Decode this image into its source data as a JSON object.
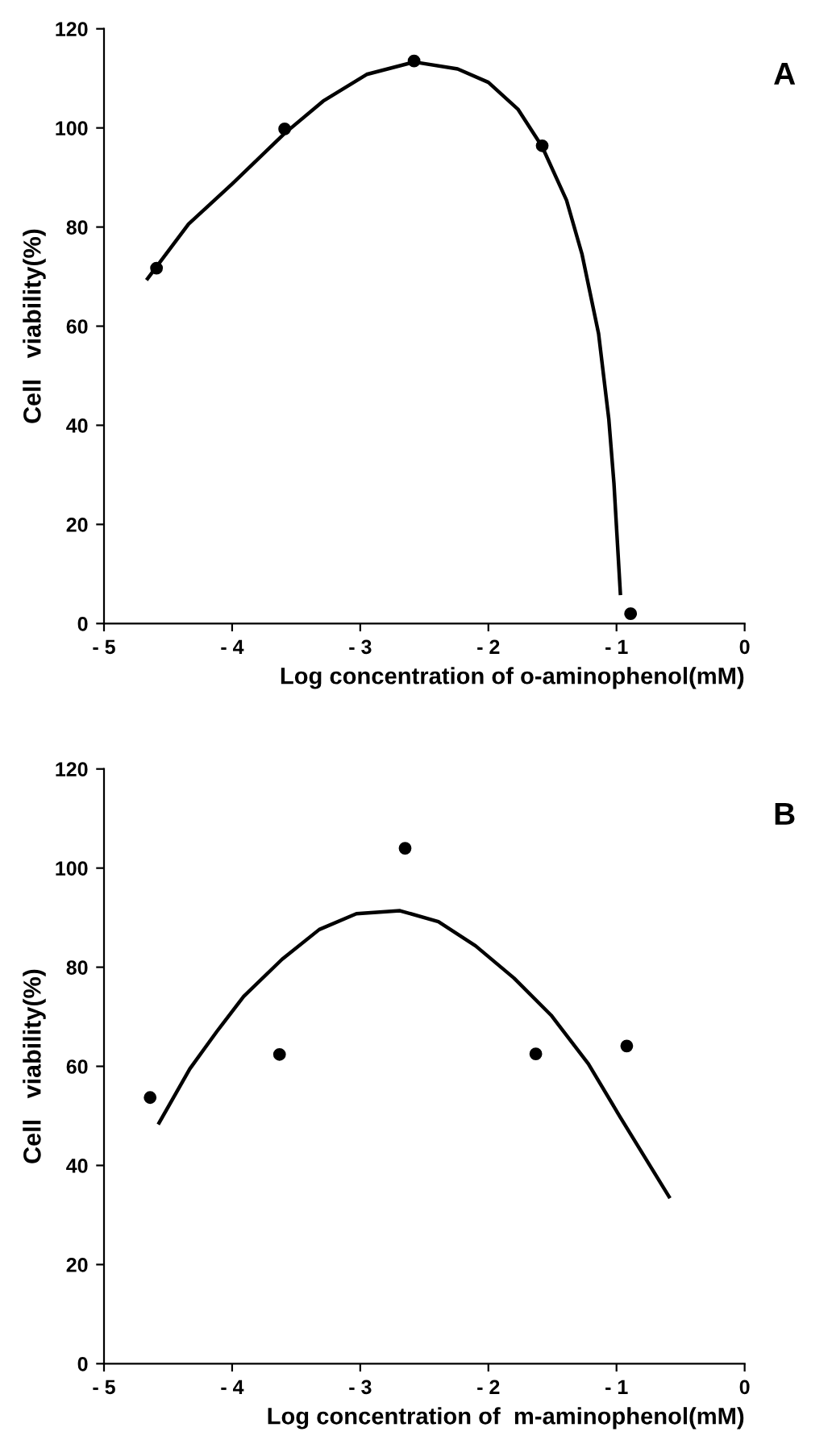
{
  "chart_data": [
    {
      "type": "scatter",
      "annotations": [
        "A"
      ],
      "xlabel": "Log concentration of o-aminophenol(mM)",
      "ylabel": "Cell   viability(%)",
      "xlim": [
        -5,
        0
      ],
      "ylim": [
        0,
        120
      ],
      "xticks": [
        {
          "value": -5,
          "label": "- 5"
        },
        {
          "value": -4,
          "label": "- 4"
        },
        {
          "value": -3,
          "label": "- 3"
        },
        {
          "value": -2,
          "label": "- 2"
        },
        {
          "value": -1,
          "label": "- 1"
        },
        0
      ],
      "yticks": [
        0,
        20,
        40,
        60,
        80,
        100,
        120
      ],
      "grid": false,
      "legend": false,
      "series": [
        {
          "color": "#000000",
          "marker": "circle",
          "x": [
            -4.59,
            -3.59,
            -2.58,
            -1.58,
            -0.89
          ],
          "values": [
            71.7,
            99.8,
            113.5,
            96.4,
            2.0
          ]
        },
        {
          "type": "line",
          "color": "#000000",
          "marker": "none",
          "line_style": "solid",
          "x": [
            -4.66,
            -4.34,
            -4.0,
            -3.59,
            -3.29,
            -2.95,
            -2.58,
            -2.24,
            -2.0,
            -1.77,
            -1.58,
            -1.39,
            -1.27,
            -1.14,
            -1.06,
            -1.02,
            -0.97
          ],
          "values": [
            69.6,
            80.6,
            88.7,
            98.9,
            105.4,
            110.8,
            113.3,
            111.9,
            109.2,
            103.8,
            96.2,
            85.4,
            74.6,
            58.5,
            41.2,
            28.3,
            6.1
          ]
        }
      ]
    },
    {
      "type": "scatter",
      "annotations": [
        "B"
      ],
      "xlabel": "Log concentration of  m-aminophenol(mM)",
      "ylabel": "Cell   viability(%)",
      "xlim": [
        -5,
        0
      ],
      "ylim": [
        0,
        120
      ],
      "xticks": [
        {
          "value": -5,
          "label": "- 5"
        },
        {
          "value": -4,
          "label": "- 4"
        },
        {
          "value": -3,
          "label": "- 3"
        },
        {
          "value": -2,
          "label": "- 2"
        },
        {
          "value": -1,
          "label": "- 1"
        },
        0
      ],
      "yticks": [
        0,
        20,
        40,
        60,
        80,
        100,
        120
      ],
      "grid": false,
      "legend": false,
      "series": [
        {
          "color": "#000000",
          "marker": "circle",
          "x": [
            -4.64,
            -3.63,
            -2.65,
            -1.63,
            -0.92
          ],
          "values": [
            53.7,
            62.4,
            104.0,
            62.5,
            64.1
          ]
        },
        {
          "type": "line",
          "color": "#000000",
          "marker": "none",
          "line_style": "solid",
          "x": [
            -4.57,
            -4.33,
            -4.12,
            -3.91,
            -3.61,
            -3.32,
            -3.03,
            -2.69,
            -2.39,
            -2.1,
            -1.8,
            -1.51,
            -1.22,
            -0.97,
            -0.59
          ],
          "values": [
            48.6,
            59.5,
            67.0,
            74.1,
            81.6,
            87.6,
            90.8,
            91.4,
            89.2,
            84.3,
            77.8,
            70.3,
            60.5,
            49.7,
            33.7
          ]
        }
      ]
    }
  ]
}
